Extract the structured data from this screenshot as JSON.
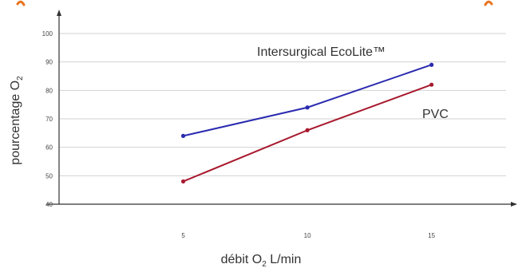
{
  "chart_data": {
    "type": "line",
    "title": "",
    "xlabel_parts": [
      "débit O",
      "2",
      " L/min"
    ],
    "ylabel_parts": [
      "pourcentage O",
      "2"
    ],
    "x": [
      5,
      10,
      15
    ],
    "xlim": [
      0,
      18
    ],
    "ylim": [
      40,
      100
    ],
    "x_ticks": [
      "5",
      "10",
      "15"
    ],
    "y_ticks": [
      "40",
      "50",
      "60",
      "70",
      "80",
      "90",
      "100"
    ],
    "grid": true,
    "series": [
      {
        "name": "Intersurgical EcoLite™",
        "values": [
          64,
          74,
          89
        ],
        "color": "#2a2ab0"
      },
      {
        "name": "PVC",
        "values": [
          48,
          66,
          82
        ],
        "color": "#a8192e"
      }
    ],
    "accent_color": "#e8731e"
  }
}
